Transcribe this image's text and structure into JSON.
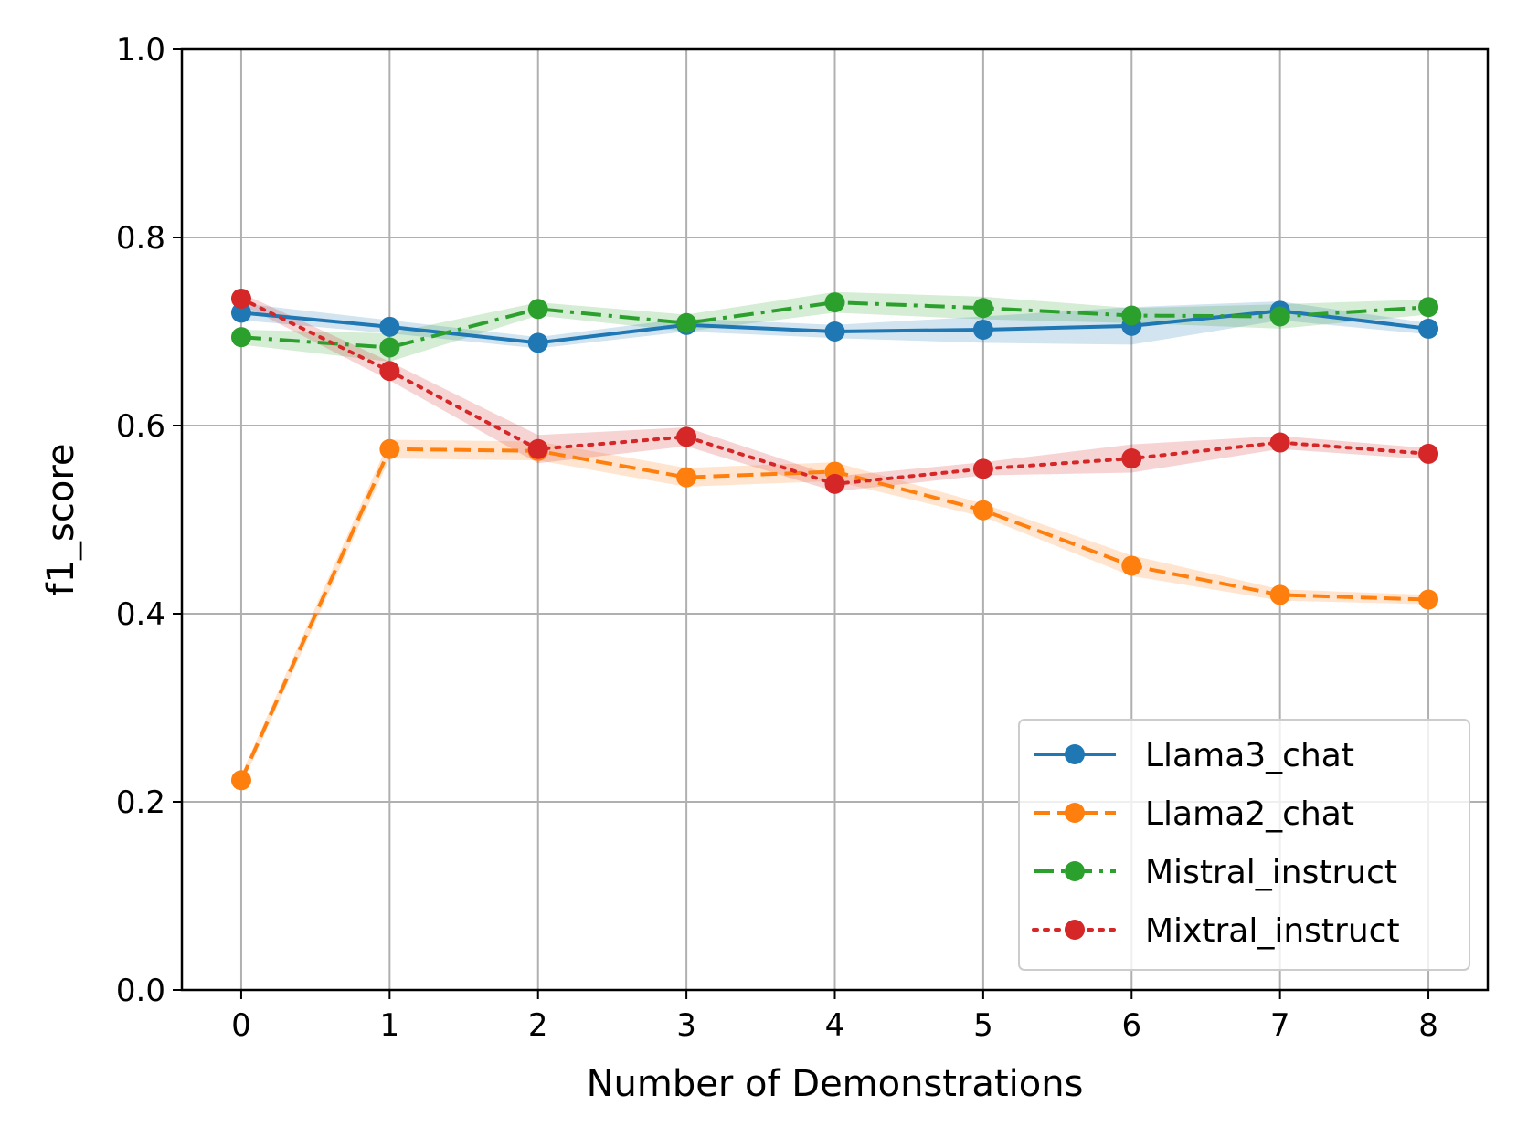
{
  "chart_data": {
    "type": "line",
    "title": "",
    "xlabel": "Number of Demonstrations",
    "ylabel": "f1_score",
    "x": [
      0,
      1,
      2,
      3,
      4,
      5,
      6,
      7,
      8
    ],
    "xlim": [
      -0.4,
      8.4
    ],
    "ylim": [
      0.0,
      1.0
    ],
    "xticks": [
      0,
      1,
      2,
      3,
      4,
      5,
      6,
      7,
      8
    ],
    "xtick_labels": [
      "0",
      "1",
      "2",
      "3",
      "4",
      "5",
      "6",
      "7",
      "8"
    ],
    "yticks": [
      0.0,
      0.2,
      0.4,
      0.6,
      0.8,
      1.0
    ],
    "ytick_labels": [
      "0.0",
      "0.2",
      "0.4",
      "0.6",
      "0.8",
      "1.0"
    ],
    "grid": true,
    "legend_position": "bottom-right",
    "series": [
      {
        "name": "Llama3_chat",
        "color": "#1f77b4",
        "linestyle": "solid",
        "values": [
          0.72,
          0.705,
          0.688,
          0.707,
          0.7,
          0.702,
          0.706,
          0.722,
          0.703
        ],
        "lower": [
          0.712,
          0.698,
          0.682,
          0.7,
          0.693,
          0.688,
          0.686,
          0.712,
          0.697
        ],
        "upper": [
          0.73,
          0.712,
          0.694,
          0.714,
          0.707,
          0.716,
          0.726,
          0.732,
          0.709
        ]
      },
      {
        "name": "Llama2_chat",
        "color": "#ff7f0e",
        "linestyle": "dashed",
        "values": [
          0.223,
          0.575,
          0.573,
          0.545,
          0.551,
          0.51,
          0.451,
          0.42,
          0.415
        ],
        "lower": [
          0.217,
          0.565,
          0.563,
          0.535,
          0.541,
          0.503,
          0.44,
          0.414,
          0.41
        ],
        "upper": [
          0.229,
          0.585,
          0.583,
          0.555,
          0.561,
          0.517,
          0.462,
          0.426,
          0.42
        ]
      },
      {
        "name": "Mistral_instruct",
        "color": "#2ca02c",
        "linestyle": "dashdot",
        "values": [
          0.694,
          0.683,
          0.724,
          0.709,
          0.731,
          0.725,
          0.717,
          0.716,
          0.726
        ],
        "lower": [
          0.686,
          0.668,
          0.717,
          0.7,
          0.72,
          0.713,
          0.709,
          0.703,
          0.718
        ],
        "upper": [
          0.702,
          0.698,
          0.731,
          0.718,
          0.742,
          0.737,
          0.725,
          0.729,
          0.734
        ]
      },
      {
        "name": "Mixtral_instruct",
        "color": "#d62728",
        "linestyle": "dotted",
        "values": [
          0.735,
          0.658,
          0.575,
          0.588,
          0.538,
          0.554,
          0.565,
          0.582,
          0.57
        ],
        "lower": [
          0.729,
          0.648,
          0.56,
          0.578,
          0.53,
          0.547,
          0.55,
          0.575,
          0.564
        ],
        "upper": [
          0.741,
          0.668,
          0.59,
          0.598,
          0.546,
          0.561,
          0.58,
          0.589,
          0.576
        ]
      }
    ]
  }
}
